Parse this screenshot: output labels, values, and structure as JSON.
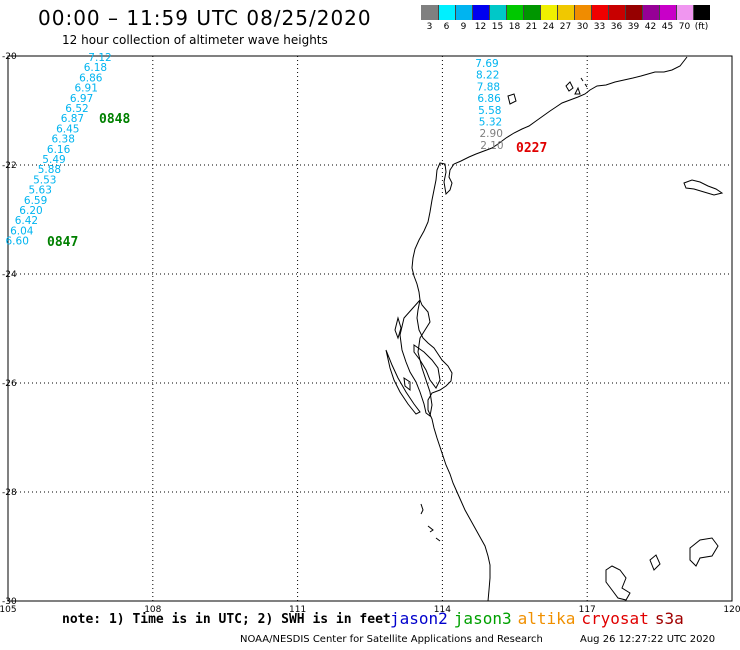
{
  "header": {
    "title": "00:00 – 11:59 UTC 08/25/2020",
    "subtitle": "12 hour collection of altimeter wave heights"
  },
  "legend": {
    "colors": [
      "#808080",
      "#00f0ff",
      "#00b4f0",
      "#0000f0",
      "#00c8c8",
      "#00c800",
      "#009600",
      "#f0f000",
      "#f0c800",
      "#f08c00",
      "#f00000",
      "#c80000",
      "#960000",
      "#960096",
      "#c800c8",
      "#f096f0",
      "#000000"
    ],
    "labels": [
      "3",
      "6",
      "9",
      "12",
      "15",
      "18",
      "21",
      "24",
      "27",
      "30",
      "33",
      "36",
      "39",
      "42",
      "45",
      "70",
      "(ft)"
    ]
  },
  "axes": {
    "y_ticks": [
      "-20",
      "-22",
      "-24",
      "-26",
      "-28",
      "-30"
    ],
    "x_ticks": [
      "105",
      "108",
      "111",
      "114",
      "117",
      "120"
    ],
    "lon_range": [
      105,
      120
    ],
    "lat_range": [
      -30,
      -20
    ],
    "grid": "dotted"
  },
  "tracks": [
    {
      "time": "0848",
      "satellite": "jason3",
      "time_color": "#008000",
      "value_color": "#00b4f0",
      "values": [
        "7.12",
        "6.18",
        "6.86",
        "6.91",
        "6.97",
        "6.52",
        "6.87",
        "6.45",
        "6.38",
        "6.16",
        "5.49",
        "5.88",
        "5.53",
        "5.63",
        "6.59",
        "6.20",
        "6.42",
        "6.04",
        "6.60"
      ]
    },
    {
      "time": "0847",
      "satellite": "jason3",
      "time_color": "#008000"
    },
    {
      "time": "0227",
      "satellite": "cryosat",
      "time_color": "#e00000",
      "values": [
        "7.69",
        "8.22",
        "7.88",
        "6.86",
        "5.58",
        "5.32",
        "2.90",
        "2.10"
      ],
      "value_colors": [
        "#00b4f0",
        "#00b4f0",
        "#00b4f0",
        "#00b4f0",
        "#00b4f0",
        "#00b4f0",
        "#808080",
        "#808080"
      ]
    }
  ],
  "footer": {
    "note": "note: 1) Time is in UTC; 2) SWH is in feet",
    "satellites": [
      {
        "name": "jason2",
        "color": "#0000cc"
      },
      {
        "name": "jason3",
        "color": "#00a000"
      },
      {
        "name": "altika",
        "color": "#f09000"
      },
      {
        "name": "cryosat",
        "color": "#e00000"
      },
      {
        "name": "s3a",
        "color": "#a00000"
      }
    ],
    "credit": "NOAA/NESDIS Center for Satellite Applications and Research",
    "timestamp": "Aug 26 12:27:22 UTC 2020"
  }
}
